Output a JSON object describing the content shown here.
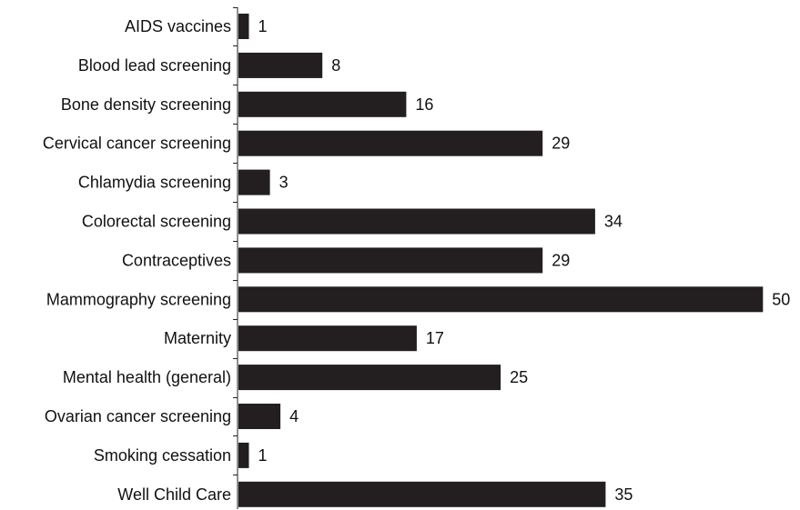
{
  "chart_data": {
    "type": "bar",
    "orientation": "horizontal",
    "categories": [
      "AIDS vaccines",
      "Blood lead screening",
      "Bone density screening",
      "Cervical cancer screening",
      "Chlamydia screening",
      "Colorectal screening",
      "Contraceptives",
      "Mammography screening",
      "Maternity",
      "Mental health (general)",
      "Ovarian cancer screening",
      "Smoking cessation",
      "Well Child Care"
    ],
    "values": [
      1,
      8,
      16,
      29,
      3,
      34,
      29,
      50,
      17,
      25,
      4,
      1,
      35
    ],
    "data_labels": [
      "1",
      "8",
      "16",
      "29",
      "3",
      "34",
      "29",
      "50",
      "17",
      "25",
      "4",
      "1",
      "35"
    ],
    "title": "",
    "xlabel": "",
    "ylabel": "",
    "xlim": [
      0,
      50
    ],
    "bar_color": "#231f20",
    "grid": false,
    "legend": "none"
  }
}
